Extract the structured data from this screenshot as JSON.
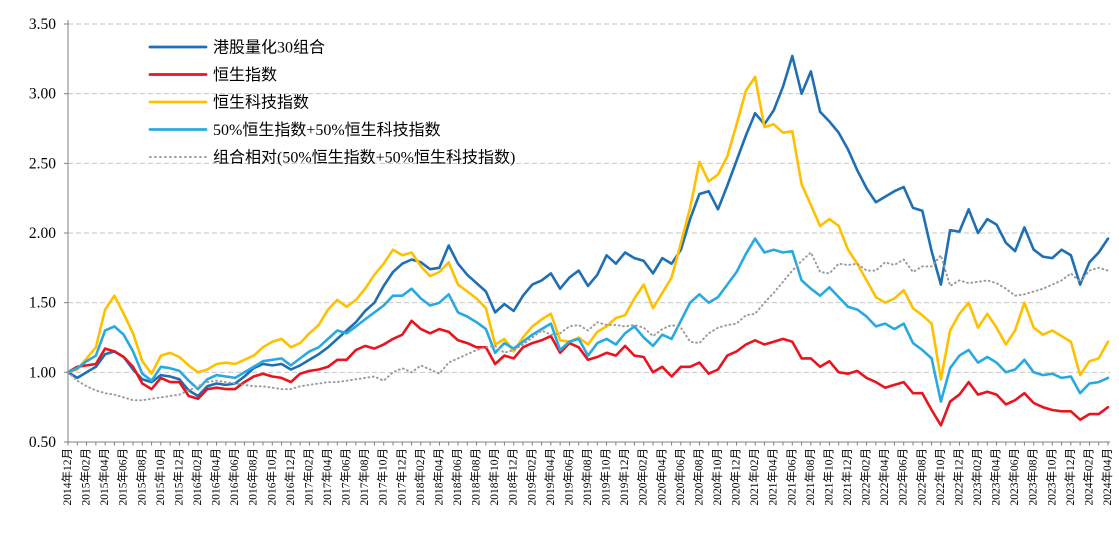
{
  "chart_data": {
    "type": "line",
    "x_axis": {
      "first_month": "2014年12月",
      "last_month": "2024年04月",
      "months_per_tick_label": 2,
      "tick_labels": [
        "2014年12月",
        "2015年02月",
        "2015年04月",
        "2015年06月",
        "2015年08月",
        "2015年10月",
        "2015年12月",
        "2016年02月",
        "2016年04月",
        "2016年06月",
        "2016年08月",
        "2016年10月",
        "2016年12月",
        "2017年02月",
        "2017年04月",
        "2017年06月",
        "2017年08月",
        "2017年10月",
        "2017年12月",
        "2018年02月",
        "2018年04月",
        "2018年06月",
        "2018年08月",
        "2018年10月",
        "2018年12月",
        "2019年02月",
        "2019年04月",
        "2019年06月",
        "2019年08月",
        "2019年10月",
        "2019年12月",
        "2020年02月",
        "2020年04月",
        "2020年06月",
        "2020年08月",
        "2020年10月",
        "2020年12月",
        "2021年02月",
        "2021年04月",
        "2021年06月",
        "2021年08月",
        "2021年10月",
        "2021年12月",
        "2022年02月",
        "2022年04月",
        "2022年06月",
        "2022年08月",
        "2022年10月",
        "2022年12月",
        "2023年02月",
        "2023年04月",
        "2023年06月",
        "2023年08月",
        "2023年10月",
        "2023年12月",
        "2024年02月",
        "2024年04月"
      ]
    },
    "y_axis": {
      "min": 0.5,
      "max": 3.5,
      "tick_labels": [
        "0.50",
        "1.00",
        "1.50",
        "2.00",
        "2.50",
        "3.00",
        "3.50"
      ]
    },
    "grid": "horizontal-dashed",
    "legend_position": "top-left",
    "colors": {
      "grid": "#c6c6c6",
      "axis": "#808080",
      "text": "#000000"
    },
    "series": [
      {
        "name": "港股量化30组合",
        "color": "#1F6FB5",
        "line_style": "solid",
        "values": [
          1.0,
          0.96,
          1.0,
          1.04,
          1.13,
          1.15,
          1.11,
          1.02,
          0.95,
          0.93,
          0.98,
          0.97,
          0.95,
          0.87,
          0.83,
          0.9,
          0.92,
          0.91,
          0.92,
          0.97,
          1.03,
          1.06,
          1.05,
          1.06,
          1.02,
          1.05,
          1.09,
          1.13,
          1.18,
          1.24,
          1.3,
          1.36,
          1.44,
          1.5,
          1.62,
          1.72,
          1.78,
          1.81,
          1.79,
          1.74,
          1.75,
          1.91,
          1.78,
          1.7,
          1.64,
          1.58,
          1.43,
          1.49,
          1.44,
          1.55,
          1.63,
          1.66,
          1.71,
          1.6,
          1.68,
          1.73,
          1.62,
          1.7,
          1.84,
          1.78,
          1.86,
          1.82,
          1.8,
          1.71,
          1.82,
          1.78,
          1.88,
          2.1,
          2.28,
          2.3,
          2.17,
          2.34,
          2.52,
          2.7,
          2.86,
          2.78,
          2.88,
          3.05,
          3.27,
          3.0,
          3.16,
          2.87,
          2.8,
          2.72,
          2.6,
          2.45,
          2.32,
          2.22,
          2.26,
          2.3,
          2.33,
          2.18,
          2.16,
          1.87,
          1.63,
          2.02,
          2.01,
          2.17,
          2.0,
          2.1,
          2.06,
          1.93,
          1.87,
          2.04,
          1.88,
          1.83,
          1.82,
          1.88,
          1.84,
          1.63,
          1.79,
          1.86,
          1.96
        ]
      },
      {
        "name": "恒生指数",
        "color": "#E9141D",
        "line_style": "solid",
        "values": [
          1.0,
          1.04,
          1.05,
          1.06,
          1.17,
          1.15,
          1.11,
          1.04,
          0.92,
          0.88,
          0.96,
          0.93,
          0.93,
          0.83,
          0.81,
          0.88,
          0.89,
          0.88,
          0.88,
          0.93,
          0.97,
          0.99,
          0.97,
          0.96,
          0.93,
          0.99,
          1.01,
          1.02,
          1.04,
          1.09,
          1.09,
          1.16,
          1.19,
          1.17,
          1.2,
          1.24,
          1.27,
          1.37,
          1.31,
          1.28,
          1.31,
          1.29,
          1.23,
          1.21,
          1.18,
          1.18,
          1.06,
          1.12,
          1.1,
          1.18,
          1.21,
          1.23,
          1.26,
          1.14,
          1.21,
          1.18,
          1.09,
          1.11,
          1.14,
          1.12,
          1.19,
          1.12,
          1.11,
          1.0,
          1.04,
          0.97,
          1.04,
          1.04,
          1.07,
          0.99,
          1.02,
          1.12,
          1.15,
          1.2,
          1.23,
          1.2,
          1.22,
          1.24,
          1.22,
          1.1,
          1.1,
          1.04,
          1.08,
          1.0,
          0.99,
          1.01,
          0.96,
          0.93,
          0.89,
          0.91,
          0.93,
          0.85,
          0.85,
          0.73,
          0.62,
          0.79,
          0.84,
          0.93,
          0.84,
          0.86,
          0.84,
          0.77,
          0.8,
          0.85,
          0.78,
          0.75,
          0.73,
          0.72,
          0.72,
          0.66,
          0.7,
          0.7,
          0.75
        ]
      },
      {
        "name": "恒生科技指数",
        "color": "#FFC000",
        "line_style": "solid",
        "values": [
          1.0,
          1.02,
          1.1,
          1.18,
          1.45,
          1.55,
          1.42,
          1.28,
          1.08,
          0.99,
          1.12,
          1.14,
          1.11,
          1.05,
          1.0,
          1.02,
          1.06,
          1.07,
          1.06,
          1.09,
          1.12,
          1.18,
          1.22,
          1.24,
          1.18,
          1.21,
          1.28,
          1.34,
          1.45,
          1.52,
          1.47,
          1.52,
          1.6,
          1.7,
          1.78,
          1.88,
          1.84,
          1.86,
          1.76,
          1.69,
          1.72,
          1.79,
          1.63,
          1.58,
          1.53,
          1.46,
          1.2,
          1.24,
          1.15,
          1.25,
          1.33,
          1.38,
          1.42,
          1.23,
          1.22,
          1.25,
          1.2,
          1.29,
          1.33,
          1.39,
          1.41,
          1.53,
          1.63,
          1.46,
          1.57,
          1.68,
          1.93,
          2.18,
          2.51,
          2.37,
          2.42,
          2.55,
          2.78,
          3.02,
          3.12,
          2.76,
          2.78,
          2.72,
          2.73,
          2.35,
          2.2,
          2.05,
          2.1,
          2.05,
          1.88,
          1.78,
          1.66,
          1.54,
          1.5,
          1.53,
          1.59,
          1.46,
          1.41,
          1.35,
          0.95,
          1.3,
          1.42,
          1.5,
          1.32,
          1.42,
          1.32,
          1.2,
          1.3,
          1.5,
          1.32,
          1.27,
          1.3,
          1.26,
          1.22,
          0.98,
          1.08,
          1.1,
          1.22
        ]
      },
      {
        "name": "50%恒生指数+50%恒生科技指数",
        "color": "#29A9E1",
        "line_style": "solid",
        "values": [
          1.0,
          1.03,
          1.08,
          1.12,
          1.3,
          1.33,
          1.27,
          1.15,
          0.99,
          0.94,
          1.04,
          1.03,
          1.01,
          0.94,
          0.88,
          0.95,
          0.98,
          0.97,
          0.96,
          1.0,
          1.04,
          1.08,
          1.09,
          1.1,
          1.05,
          1.1,
          1.15,
          1.18,
          1.24,
          1.3,
          1.28,
          1.33,
          1.38,
          1.43,
          1.48,
          1.55,
          1.55,
          1.6,
          1.53,
          1.48,
          1.5,
          1.56,
          1.43,
          1.4,
          1.36,
          1.31,
          1.14,
          1.21,
          1.17,
          1.22,
          1.27,
          1.31,
          1.35,
          1.16,
          1.22,
          1.24,
          1.12,
          1.21,
          1.24,
          1.2,
          1.28,
          1.33,
          1.25,
          1.19,
          1.27,
          1.24,
          1.37,
          1.5,
          1.56,
          1.5,
          1.54,
          1.63,
          1.72,
          1.85,
          1.96,
          1.86,
          1.88,
          1.86,
          1.87,
          1.66,
          1.6,
          1.55,
          1.61,
          1.54,
          1.47,
          1.45,
          1.4,
          1.33,
          1.35,
          1.31,
          1.35,
          1.21,
          1.16,
          1.1,
          0.79,
          1.03,
          1.12,
          1.16,
          1.07,
          1.11,
          1.07,
          1.0,
          1.02,
          1.09,
          1.0,
          0.98,
          0.99,
          0.96,
          0.97,
          0.85,
          0.92,
          0.93,
          0.96
        ]
      },
      {
        "name": "组合相对(50%恒生指数+50%恒生科技指数)",
        "color": "#9C9C9C",
        "line_style": "dotted",
        "values": [
          1.0,
          0.94,
          0.9,
          0.87,
          0.85,
          0.84,
          0.82,
          0.8,
          0.8,
          0.81,
          0.82,
          0.83,
          0.84,
          0.87,
          0.9,
          0.93,
          0.94,
          0.93,
          0.92,
          0.91,
          0.9,
          0.9,
          0.89,
          0.88,
          0.88,
          0.9,
          0.91,
          0.92,
          0.93,
          0.93,
          0.94,
          0.95,
          0.96,
          0.97,
          0.94,
          1.0,
          1.03,
          1.0,
          1.05,
          1.02,
          0.99,
          1.07,
          1.1,
          1.13,
          1.16,
          1.18,
          1.19,
          1.14,
          1.16,
          1.2,
          1.25,
          1.3,
          1.27,
          1.28,
          1.33,
          1.34,
          1.3,
          1.36,
          1.34,
          1.34,
          1.33,
          1.34,
          1.32,
          1.26,
          1.31,
          1.34,
          1.32,
          1.22,
          1.21,
          1.28,
          1.32,
          1.34,
          1.35,
          1.41,
          1.42,
          1.5,
          1.57,
          1.65,
          1.73,
          1.8,
          1.86,
          1.72,
          1.71,
          1.78,
          1.77,
          1.78,
          1.73,
          1.73,
          1.79,
          1.77,
          1.81,
          1.72,
          1.76,
          1.76,
          1.84,
          1.62,
          1.66,
          1.64,
          1.65,
          1.66,
          1.64,
          1.6,
          1.55,
          1.56,
          1.58,
          1.6,
          1.63,
          1.66,
          1.71,
          1.65,
          1.73,
          1.75,
          1.73
        ]
      }
    ]
  }
}
